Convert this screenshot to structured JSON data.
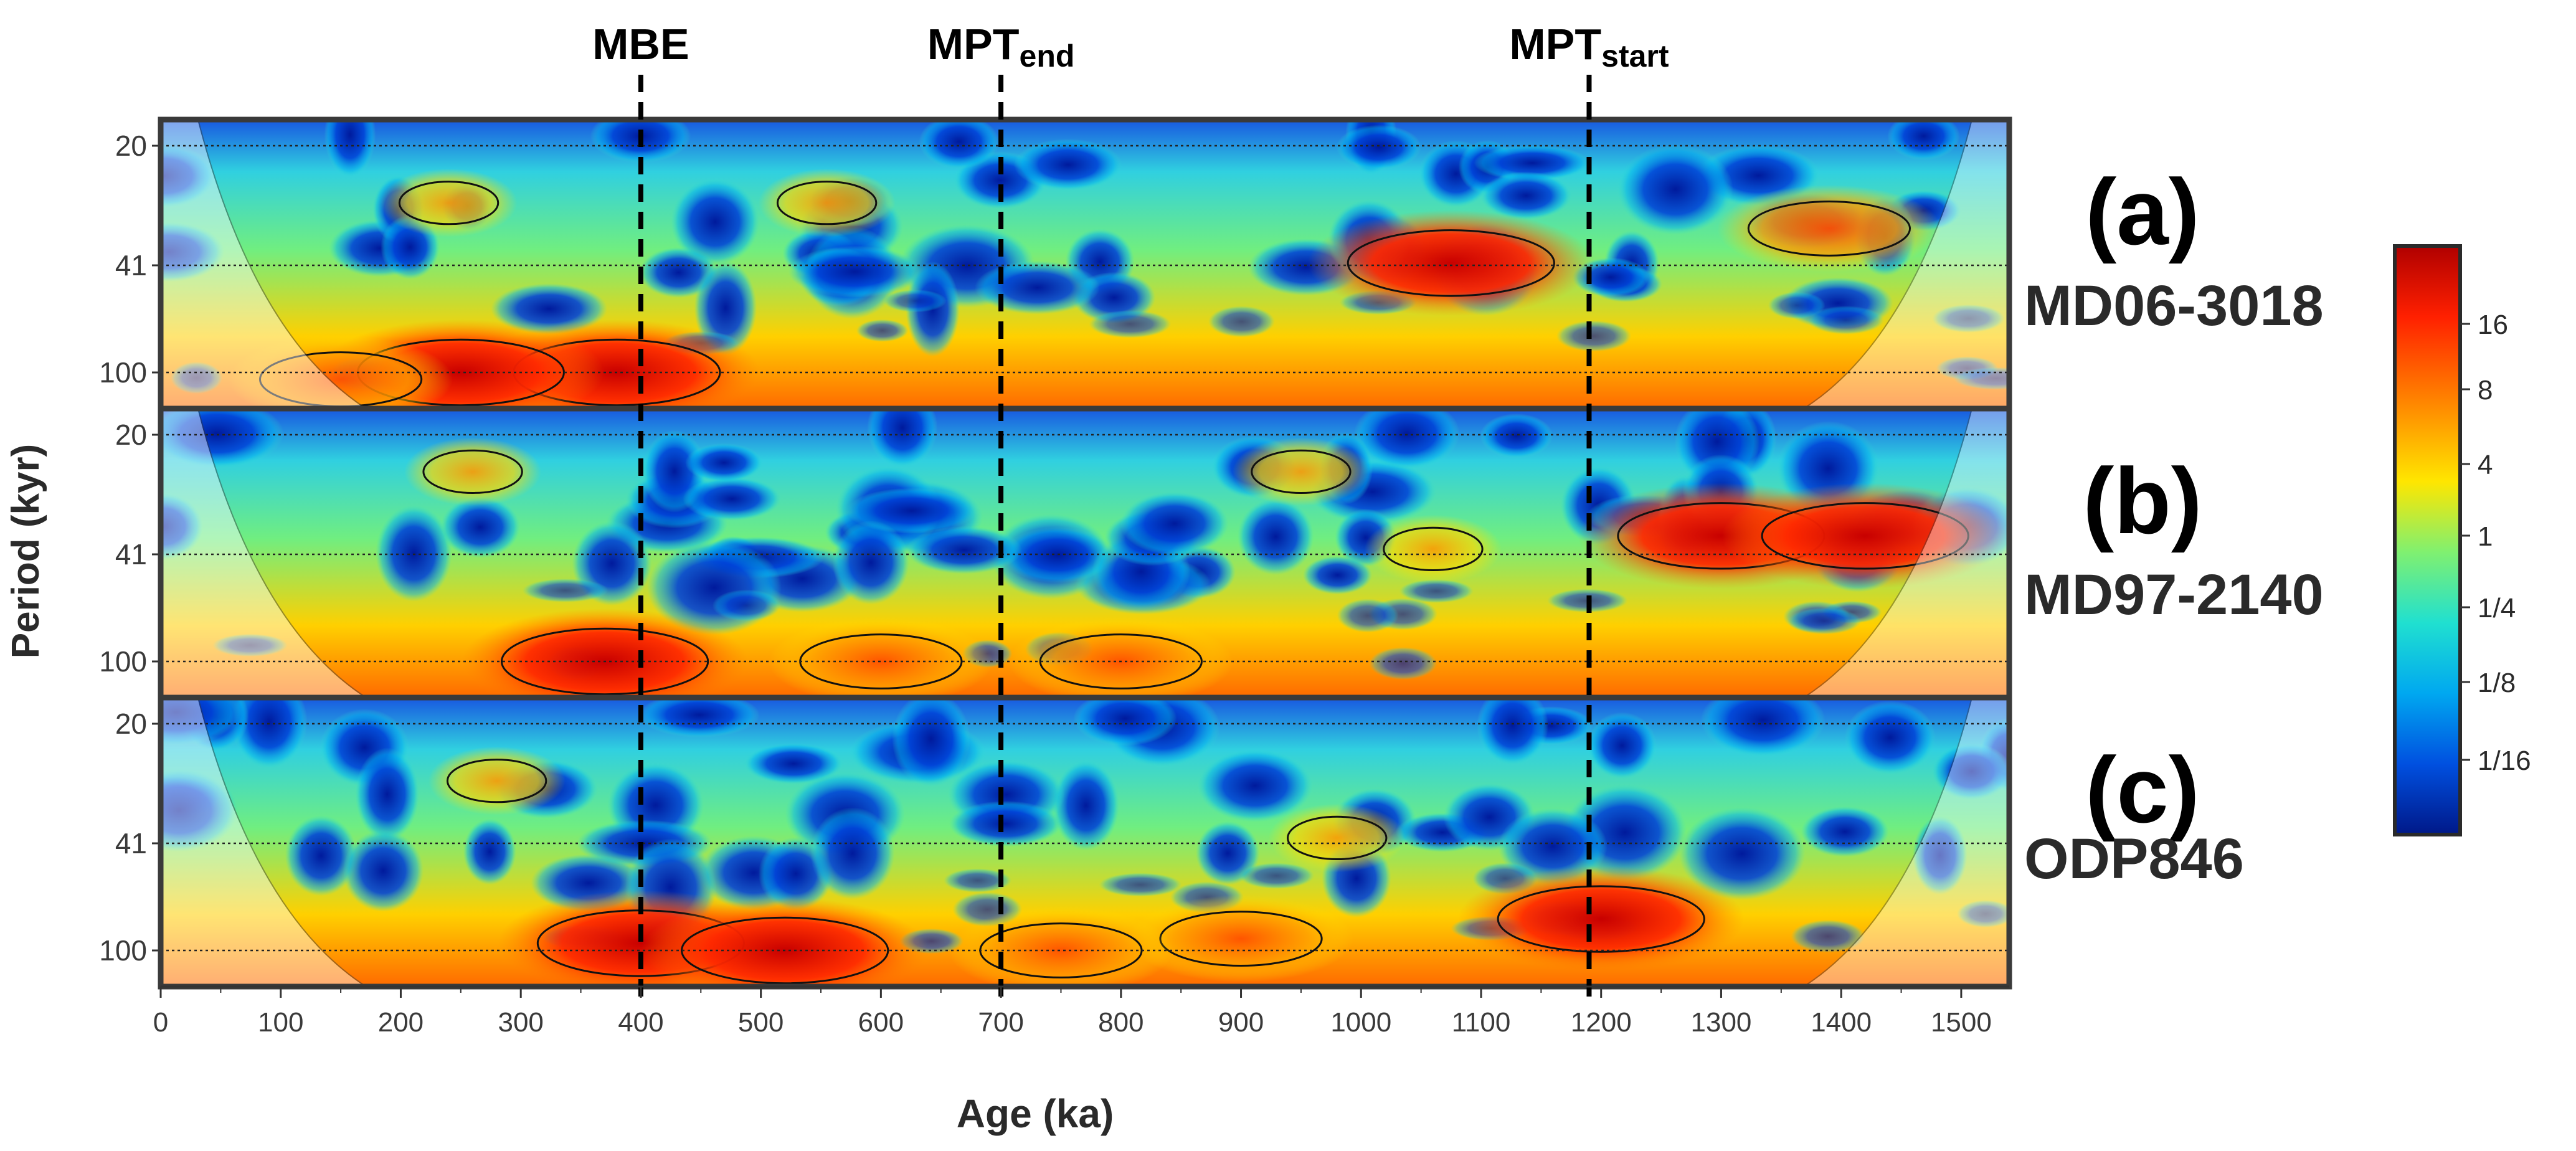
{
  "chart_data": {
    "type": "heatmap",
    "title": "",
    "xlabel": "Age (ka)",
    "ylabel": "Period (kyr)",
    "xlim": [
      0,
      1540
    ],
    "x_ticks": [
      0,
      100,
      200,
      300,
      400,
      500,
      600,
      700,
      800,
      900,
      1000,
      1100,
      1200,
      1300,
      1400,
      1500
    ],
    "period_ticks": [
      "20",
      "41",
      "100"
    ],
    "events": [
      {
        "name": "MBE",
        "sub": "",
        "age": 400
      },
      {
        "name": "MPT",
        "sub": "end",
        "age": 700
      },
      {
        "name": "MPT",
        "sub": "start",
        "age": 1190
      }
    ],
    "panels": [
      {
        "id": "(a)",
        "core": "MD06-3018",
        "hotspots": [
          {
            "age": 380,
            "period": 100,
            "power": 16
          },
          {
            "age": 250,
            "period": 100,
            "power": 12
          },
          {
            "age": 1075,
            "period": 46,
            "power": 14
          },
          {
            "age": 1390,
            "period": 36,
            "power": 10
          },
          {
            "age": 555,
            "period": 30,
            "power": 5
          },
          {
            "age": 240,
            "period": 30,
            "power": 5
          },
          {
            "age": 150,
            "period": 105,
            "power": 8
          }
        ]
      },
      {
        "id": "(b)",
        "core": "MD97-2140",
        "hotspots": [
          {
            "age": 1300,
            "period": 41,
            "power": 16
          },
          {
            "age": 1420,
            "period": 41,
            "power": 14
          },
          {
            "age": 370,
            "period": 100,
            "power": 12
          },
          {
            "age": 800,
            "period": 100,
            "power": 10
          },
          {
            "age": 600,
            "period": 100,
            "power": 9
          },
          {
            "age": 260,
            "period": 26,
            "power": 6
          },
          {
            "age": 950,
            "period": 26,
            "power": 6
          },
          {
            "age": 1060,
            "period": 45,
            "power": 6
          }
        ]
      },
      {
        "id": "(c)",
        "core": "ODP846",
        "hotspots": [
          {
            "age": 400,
            "period": 95,
            "power": 16
          },
          {
            "age": 520,
            "period": 100,
            "power": 14
          },
          {
            "age": 1200,
            "period": 80,
            "power": 16
          },
          {
            "age": 900,
            "period": 92,
            "power": 10
          },
          {
            "age": 750,
            "period": 100,
            "power": 9
          },
          {
            "age": 280,
            "period": 30,
            "power": 5
          },
          {
            "age": 980,
            "period": 45,
            "power": 5
          }
        ]
      }
    ],
    "colorbar": {
      "labels": [
        "16",
        "8",
        "4",
        "1",
        "1/4",
        "1/8",
        "1/16"
      ],
      "colors": [
        "#d00000",
        "#ff3000",
        "#ff9000",
        "#ffe000",
        "#90f060",
        "#30e0c0",
        "#00c0f0",
        "#0060e0",
        "#001a9a"
      ]
    }
  }
}
